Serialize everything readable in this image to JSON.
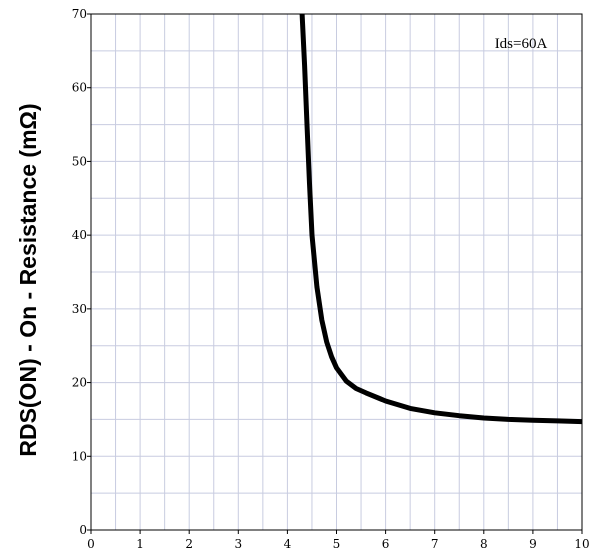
{
  "chart_data": {
    "type": "line",
    "title": "",
    "xlabel": "",
    "ylabel": "RDS(ON) - On - Resistance (mΩ)",
    "annotation": "Ids=60A",
    "xlim": [
      0,
      10
    ],
    "ylim": [
      0,
      70
    ],
    "x_ticks": [
      0,
      1,
      2,
      3,
      4,
      5,
      6,
      7,
      8,
      9,
      10
    ],
    "x_tick_labels": [
      "0",
      "1",
      "2",
      "3",
      "4",
      "5",
      "6",
      "7",
      "8",
      "9",
      "10"
    ],
    "y_ticks": [
      0,
      10,
      20,
      30,
      40,
      50,
      60,
      70
    ],
    "y_tick_labels": [
      "0",
      "10",
      "20",
      "30",
      "40",
      "50",
      "60",
      "70"
    ],
    "grid": true,
    "legend": "none",
    "colors": {
      "line": "#000000",
      "grid": "#c8cce0",
      "axis": "#000000"
    },
    "series": [
      {
        "x": [
          4.3,
          4.35,
          4.4,
          4.45,
          4.5,
          4.6,
          4.7,
          4.8,
          4.9,
          5.0,
          5.2,
          5.4,
          5.6,
          6.0,
          6.5,
          7.0,
          7.5,
          8.0,
          8.5,
          9.0,
          9.5,
          10.0
        ],
        "y": [
          70,
          63,
          55,
          47,
          40,
          33,
          28.5,
          25.5,
          23.5,
          22,
          20.2,
          19.2,
          18.6,
          17.5,
          16.5,
          15.9,
          15.5,
          15.2,
          15.0,
          14.9,
          14.8,
          14.7
        ]
      }
    ]
  }
}
